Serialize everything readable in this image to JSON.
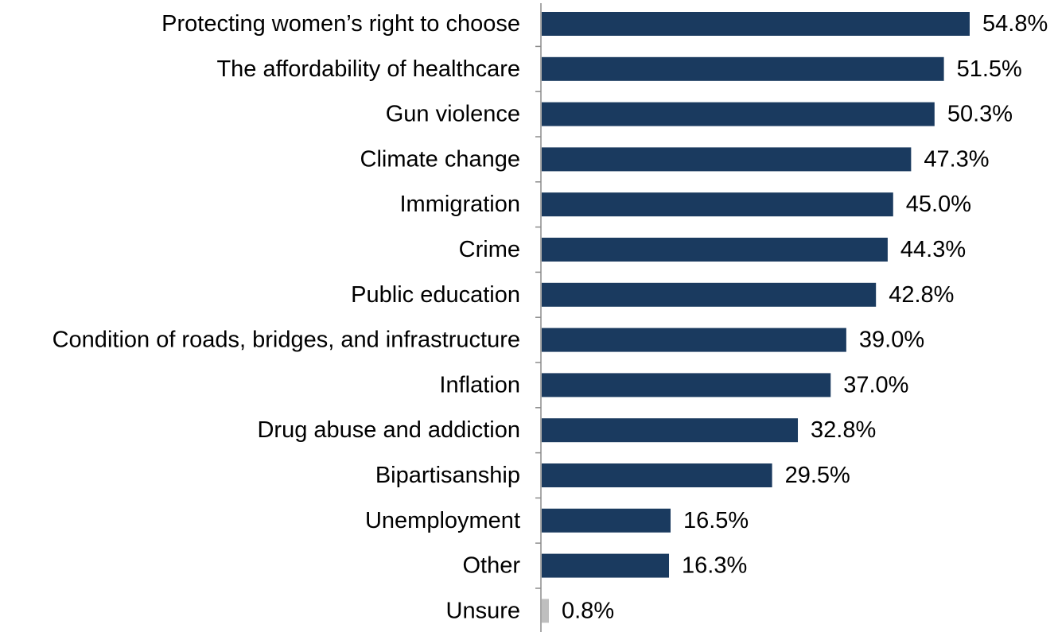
{
  "chart_data": {
    "type": "bar",
    "orientation": "horizontal",
    "categories": [
      "Protecting women’s right to choose",
      "The affordability of healthcare",
      "Gun violence",
      "Climate change",
      "Immigration",
      "Crime",
      "Public education",
      "Condition of roads, bridges, and infrastructure",
      "Inflation",
      "Drug abuse and addiction",
      "Bipartisanship",
      "Unemployment",
      "Other",
      "Unsure"
    ],
    "values": [
      54.8,
      51.5,
      50.3,
      47.3,
      45.0,
      44.3,
      42.8,
      39.0,
      37.0,
      32.8,
      29.5,
      16.5,
      16.3,
      0.8
    ],
    "value_labels": [
      "54.8%",
      "51.5%",
      "50.3%",
      "47.3%",
      "45.0%",
      "44.3%",
      "42.8%",
      "39.0%",
      "37.0%",
      "32.8%",
      "29.5%",
      "16.5%",
      "16.3%",
      "0.8%"
    ],
    "xlim": [
      0,
      60
    ],
    "grid": false,
    "legend": "none",
    "colors": {
      "bar": "#1a3a5f",
      "highlight_bar": "#bfbfbf",
      "axis": "#8c8c8c"
    },
    "highlight_categories": [
      "Unsure"
    ]
  }
}
